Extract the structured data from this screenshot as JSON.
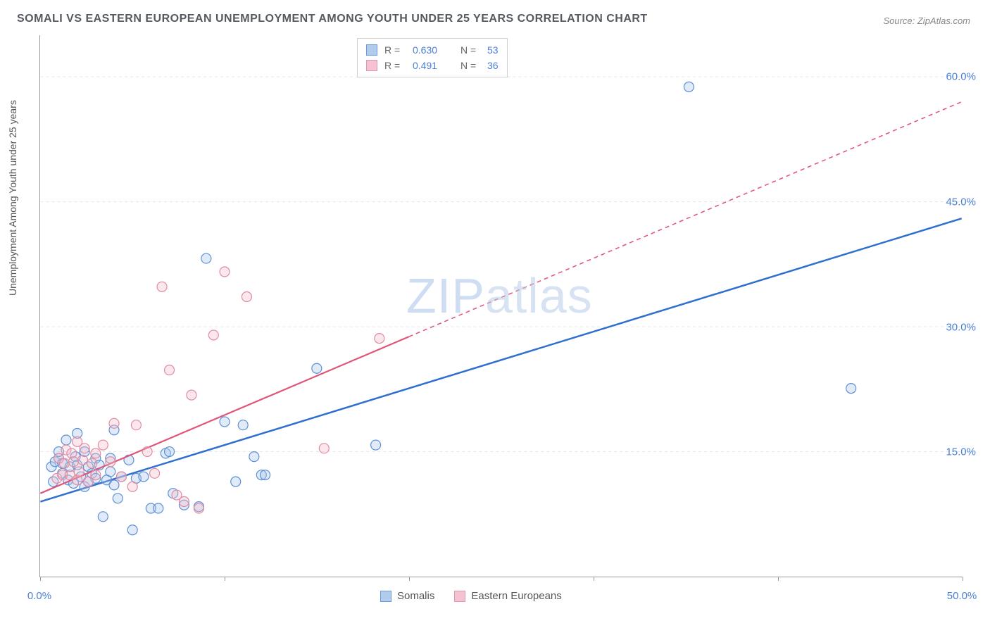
{
  "title": "SOMALI VS EASTERN EUROPEAN UNEMPLOYMENT AMONG YOUTH UNDER 25 YEARS CORRELATION CHART",
  "source": "Source: ZipAtlas.com",
  "ylabel": "Unemployment Among Youth under 25 years",
  "watermark_bold": "ZIP",
  "watermark_thin": "atlas",
  "chart": {
    "type": "scatter",
    "background_color": "#ffffff",
    "grid_color": "#e6e6e6",
    "axis_color": "#999999",
    "label_color": "#4a7fd6",
    "label_fontsize": 15,
    "title_fontsize": 16,
    "title_color": "#555a60",
    "xlim": [
      0,
      50
    ],
    "ylim": [
      0,
      65
    ],
    "x_ticks": [
      0,
      10,
      20,
      30,
      40,
      50
    ],
    "x_tick_labels": {
      "0": "0.0%",
      "50": "50.0%"
    },
    "y_ticks": [
      15,
      30,
      45,
      60
    ],
    "y_tick_labels": {
      "15": "15.0%",
      "30": "30.0%",
      "45": "45.0%",
      "60": "60.0%"
    },
    "marker_radius": 7,
    "marker_stroke_width": 1.2,
    "marker_fill_opacity": 0.35,
    "series": [
      {
        "name": "Somalis",
        "color_stroke": "#5b8fd6",
        "color_fill": "#a8c6ea",
        "R": "0.630",
        "N": "53",
        "trend": {
          "x1": 0,
          "y1": 9,
          "x2": 50,
          "y2": 43,
          "solid_end_x": 50,
          "stroke": "#2f6fd0",
          "width": 2.5,
          "dash": ""
        },
        "points": [
          [
            0.6,
            13.2
          ],
          [
            0.7,
            11.4
          ],
          [
            0.8,
            13.8
          ],
          [
            1.0,
            14.2
          ],
          [
            1.0,
            15.0
          ],
          [
            1.2,
            12.4
          ],
          [
            1.2,
            13.6
          ],
          [
            1.4,
            16.4
          ],
          [
            1.5,
            11.6
          ],
          [
            1.6,
            13.2
          ],
          [
            1.8,
            11.2
          ],
          [
            1.9,
            14.4
          ],
          [
            2.0,
            13.4
          ],
          [
            2.0,
            17.2
          ],
          [
            2.2,
            12.0
          ],
          [
            2.4,
            15.0
          ],
          [
            2.4,
            10.8
          ],
          [
            2.6,
            11.4
          ],
          [
            2.6,
            13.2
          ],
          [
            2.8,
            12.4
          ],
          [
            3.0,
            14.2
          ],
          [
            3.0,
            11.8
          ],
          [
            3.2,
            13.4
          ],
          [
            3.4,
            7.2
          ],
          [
            3.6,
            11.6
          ],
          [
            3.8,
            12.6
          ],
          [
            3.8,
            14.2
          ],
          [
            4.0,
            11.0
          ],
          [
            4.0,
            17.6
          ],
          [
            4.2,
            9.4
          ],
          [
            4.4,
            12.0
          ],
          [
            4.8,
            14.0
          ],
          [
            5.0,
            5.6
          ],
          [
            5.2,
            11.8
          ],
          [
            5.6,
            12.0
          ],
          [
            6.0,
            8.2
          ],
          [
            6.4,
            8.2
          ],
          [
            6.8,
            14.8
          ],
          [
            7.0,
            15.0
          ],
          [
            7.2,
            10.0
          ],
          [
            7.8,
            8.6
          ],
          [
            8.6,
            8.4
          ],
          [
            9.0,
            38.2
          ],
          [
            10.0,
            18.6
          ],
          [
            10.6,
            11.4
          ],
          [
            11.0,
            18.2
          ],
          [
            11.6,
            14.4
          ],
          [
            12.0,
            12.2
          ],
          [
            12.2,
            12.2
          ],
          [
            15.0,
            25.0
          ],
          [
            18.2,
            15.8
          ],
          [
            35.2,
            58.8
          ],
          [
            44.0,
            22.6
          ]
        ]
      },
      {
        "name": "Eastern Europeans",
        "color_stroke": "#e28aa0",
        "color_fill": "#f3bccb",
        "R": "0.491",
        "N": "36",
        "trend": {
          "x1": 0,
          "y1": 10,
          "x2": 50,
          "y2": 57,
          "solid_end_x": 20,
          "stroke": "#e05577",
          "width": 2.2,
          "dash": "6 5"
        },
        "points": [
          [
            0.9,
            11.8
          ],
          [
            1.0,
            14.2
          ],
          [
            1.2,
            12.2
          ],
          [
            1.3,
            13.6
          ],
          [
            1.4,
            15.2
          ],
          [
            1.6,
            12.2
          ],
          [
            1.7,
            14.8
          ],
          [
            1.8,
            13.8
          ],
          [
            2.0,
            11.6
          ],
          [
            2.0,
            16.2
          ],
          [
            2.1,
            12.6
          ],
          [
            2.3,
            14.0
          ],
          [
            2.4,
            15.4
          ],
          [
            2.6,
            11.4
          ],
          [
            2.8,
            13.6
          ],
          [
            3.0,
            14.8
          ],
          [
            3.0,
            12.2
          ],
          [
            3.4,
            15.8
          ],
          [
            3.8,
            13.8
          ],
          [
            4.0,
            18.4
          ],
          [
            4.4,
            12.0
          ],
          [
            5.0,
            10.8
          ],
          [
            5.2,
            18.2
          ],
          [
            5.8,
            15.0
          ],
          [
            6.2,
            12.4
          ],
          [
            6.6,
            34.8
          ],
          [
            7.0,
            24.8
          ],
          [
            7.4,
            9.8
          ],
          [
            7.8,
            9.0
          ],
          [
            8.2,
            21.8
          ],
          [
            8.6,
            8.2
          ],
          [
            9.4,
            29.0
          ],
          [
            10.0,
            36.6
          ],
          [
            11.2,
            33.6
          ],
          [
            15.4,
            15.4
          ],
          [
            18.4,
            28.6
          ]
        ]
      }
    ]
  },
  "top_legend": {
    "R_label": "R =",
    "N_label": "N ="
  },
  "bottom_legend": {
    "series1": "Somalis",
    "series2": "Eastern Europeans"
  }
}
